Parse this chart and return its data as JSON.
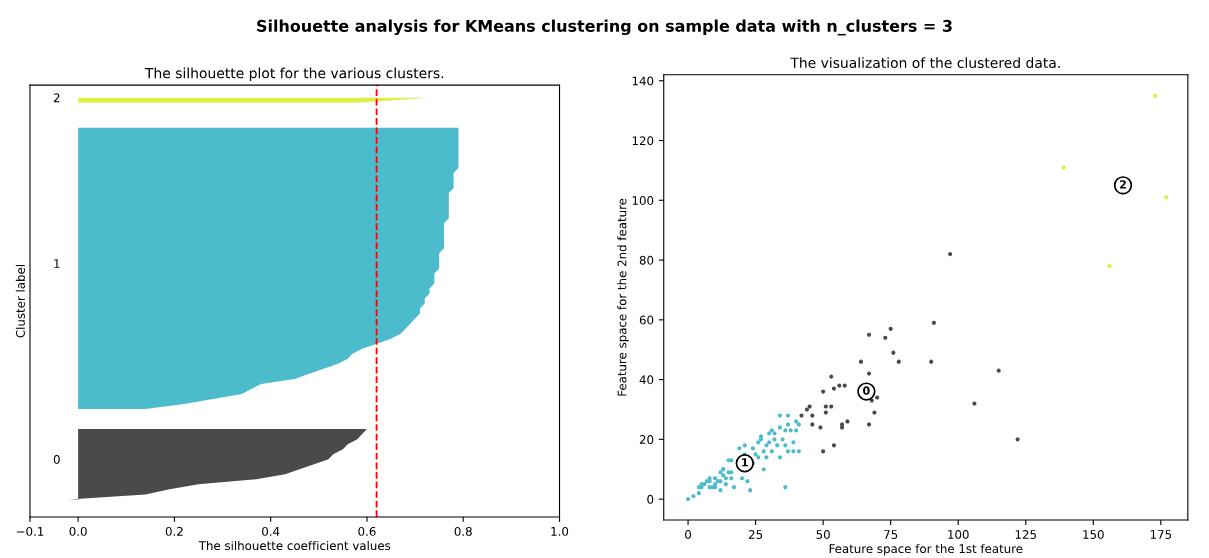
{
  "chart_data": [
    {
      "type": "area",
      "orientation": "horizontal",
      "title": "The silhouette plot for the various clusters.",
      "xlabel": "The silhouette coefficient values",
      "ylabel": "Cluster label",
      "annotations": [
        "Silhouette analysis for KMeans clustering on sample data with n_clusters = 3"
      ],
      "categories": [
        null,
        null,
        "2",
        null,
        null,
        null,
        null,
        null,
        null,
        null,
        null,
        null,
        null,
        null,
        null,
        null,
        null,
        null,
        null,
        null,
        null,
        null,
        null,
        null,
        null,
        null,
        null,
        null,
        null,
        null,
        null,
        null,
        null,
        null,
        null,
        "1",
        null,
        null,
        null,
        null,
        null,
        null,
        null,
        null,
        null,
        null,
        null,
        null,
        null,
        null,
        null,
        null,
        null,
        null,
        null,
        null,
        null,
        null,
        null,
        null,
        null,
        null,
        null,
        null,
        null,
        null,
        null,
        null,
        null,
        null,
        null,
        null,
        null,
        null,
        "0",
        null,
        null,
        null,
        null,
        null,
        null,
        null,
        null,
        null,
        null,
        null
      ],
      "series": [
        {
          "color": "#4a4a4a",
          "values": [
            null,
            null,
            null,
            null,
            null,
            null,
            null,
            null,
            null,
            null,
            null,
            null,
            null,
            null,
            null,
            null,
            null,
            null,
            null,
            null,
            null,
            null,
            null,
            null,
            null,
            null,
            null,
            null,
            null,
            null,
            null,
            null,
            null,
            null,
            null,
            null,
            null,
            null,
            null,
            null,
            null,
            null,
            null,
            null,
            null,
            null,
            null,
            null,
            null,
            null,
            null,
            null,
            null,
            null,
            null,
            null,
            null,
            null,
            null,
            null,
            null,
            null,
            null,
            null,
            null,
            null,
            null,
            null,
            0.6,
            0.59,
            0.58,
            0.56,
            0.55,
            0.53,
            0.52,
            0.49,
            0.46,
            0.43,
            0.37,
            0.25,
            0.19,
            0.14,
            -0.02,
            null,
            null,
            null
          ]
        },
        {
          "color": "#4cbccc",
          "values": [
            null,
            null,
            null,
            null,
            null,
            null,
            null,
            null,
            0.79,
            0.79,
            0.79,
            0.79,
            0.79,
            0.79,
            0.79,
            0.79,
            0.79,
            0.78,
            0.78,
            0.78,
            0.78,
            0.77,
            0.77,
            0.77,
            0.77,
            0.77,
            0.77,
            0.76,
            0.76,
            0.76,
            0.76,
            0.76,
            0.76,
            0.75,
            0.75,
            0.75,
            0.75,
            0.74,
            0.74,
            0.74,
            0.73,
            0.73,
            0.72,
            0.72,
            0.71,
            0.71,
            0.7,
            0.69,
            0.68,
            0.67,
            0.65,
            0.62,
            0.59,
            0.57,
            0.56,
            0.54,
            0.51,
            0.48,
            0.45,
            0.38,
            0.36,
            0.34,
            0.28,
            0.22,
            0.14,
            null,
            null,
            null,
            null,
            null,
            null,
            null,
            null,
            null,
            null,
            null,
            null,
            null,
            null,
            null,
            null,
            null,
            null,
            null,
            null,
            null
          ]
        },
        {
          "color": "#dcf046",
          "values": [
            null,
            null,
            0.73,
            0.58,
            null,
            null,
            null,
            null,
            null,
            null,
            null,
            null,
            null,
            null,
            null,
            null,
            null,
            null,
            null,
            null,
            null,
            null,
            null,
            null,
            null,
            null,
            null,
            null,
            null,
            null,
            null,
            null,
            null,
            null,
            null,
            null,
            null,
            null,
            null,
            null,
            null,
            null,
            null,
            null,
            null,
            null,
            null,
            null,
            null,
            null,
            null,
            null,
            null,
            null,
            null,
            null,
            null,
            null,
            null,
            null,
            null,
            null,
            null,
            null,
            null,
            null,
            null,
            null,
            null,
            null,
            null,
            null,
            null,
            null,
            null,
            null,
            null,
            null,
            null,
            null,
            null,
            null,
            null,
            null,
            null,
            null
          ]
        }
      ],
      "xlim": [
        -0.1,
        1.0
      ],
      "xticks": [
        {
          "value": -0.1,
          "label": "−0.1"
        },
        {
          "value": 0,
          "label": "0.0"
        },
        {
          "value": 0.2,
          "label": "0.2"
        },
        {
          "value": 0.4,
          "label": "0.4"
        },
        {
          "value": 0.6,
          "label": "0.6"
        },
        {
          "value": 0.8,
          "label": "0.8"
        },
        {
          "value": 1.0,
          "label": "1.0"
        }
      ],
      "ref_lines": [
        {
          "axis": "x",
          "value": 0.62,
          "color": "#ff0000",
          "line_style": "dashed"
        }
      ]
    },
    {
      "type": "scatter",
      "title": "The visualization of the clustered data.",
      "xlabel": "Feature space for the 1st feature",
      "ylabel": "Feature space for the 2nd feature",
      "marker": "circle",
      "annotations": [
        {
          "text": "0",
          "x": 66,
          "y": 36
        },
        {
          "text": "1",
          "x": 21,
          "y": 12
        },
        {
          "text": "2",
          "x": 161,
          "y": 105
        }
      ],
      "series": [
        {
          "color": "#4a4a4a",
          "x": [
            97,
            91,
            67,
            75,
            73,
            76,
            64,
            78,
            90,
            67,
            53,
            50,
            54,
            56,
            58,
            68,
            70,
            106,
            45,
            44,
            51,
            53,
            51,
            42,
            46,
            69,
            46,
            49,
            57,
            57,
            59,
            67,
            54,
            50,
            115,
            122
          ],
          "values": [
            82,
            59,
            55,
            57,
            54,
            49,
            46,
            46,
            46,
            42,
            41,
            36,
            37,
            38,
            38,
            33,
            34,
            32,
            31,
            30,
            31,
            31,
            29,
            28,
            28,
            29,
            25,
            24,
            25,
            24,
            26,
            25,
            18,
            16,
            43,
            20
          ]
        },
        {
          "color": "#4cbccc",
          "x": [
            0,
            2,
            4,
            5,
            6,
            7,
            8,
            8,
            9,
            10,
            10,
            11,
            12,
            12,
            13,
            13,
            14,
            15,
            16,
            16,
            16,
            17,
            19,
            20,
            21,
            21,
            22,
            23,
            24,
            24,
            25,
            26,
            26,
            27,
            28,
            28,
            29,
            29,
            30,
            31,
            31,
            32,
            32,
            33,
            34,
            34,
            34,
            35,
            36,
            36,
            36,
            37,
            37,
            38,
            39,
            39,
            40,
            40,
            41,
            41,
            37,
            30,
            27,
            15,
            13,
            5,
            4,
            8,
            10,
            12,
            14
          ],
          "values": [
            0,
            1,
            4,
            5,
            5,
            6,
            6,
            7,
            4,
            7,
            5,
            6,
            9,
            6,
            8,
            10,
            7,
            9,
            7,
            9,
            13,
            4,
            17,
            7,
            15,
            18,
            6,
            3,
            17,
            12,
            15,
            19,
            14,
            20,
            16,
            10,
            18,
            14,
            19,
            16,
            23,
            20,
            22,
            18,
            28,
            14,
            24,
            20,
            23,
            4,
            18,
            25,
            28,
            23,
            19,
            16,
            26,
            23,
            16,
            25,
            16,
            22,
            21,
            13,
            10,
            4,
            2,
            4,
            4,
            3,
            5
          ]
        },
        {
          "color": "#dcf046",
          "x": [
            173,
            139,
            177,
            156
          ],
          "values": [
            135,
            111,
            101,
            78
          ]
        }
      ],
      "xlim": [
        -9,
        185
      ],
      "xticks": [
        0,
        25,
        50,
        75,
        100,
        125,
        150,
        175
      ],
      "ylim": [
        -7,
        142
      ],
      "yticks": [
        0,
        20,
        40,
        60,
        80,
        100,
        120,
        140
      ]
    }
  ]
}
